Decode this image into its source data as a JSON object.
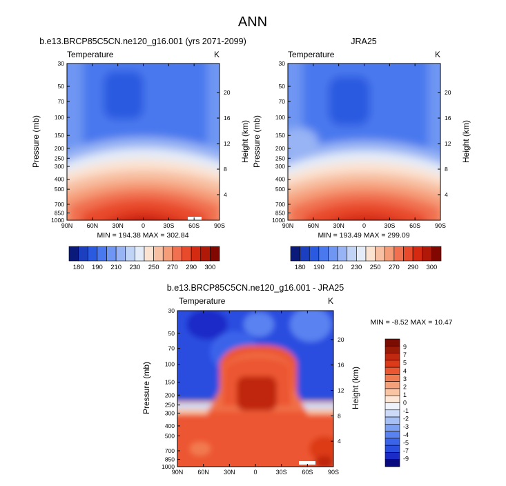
{
  "figure": {
    "title": "ANN"
  },
  "colors": {
    "abs_palette": [
      "#0a1a7a",
      "#1c3fc0",
      "#2a5ae0",
      "#4a78ee",
      "#6e96f2",
      "#98b4f4",
      "#c2d4f6",
      "#e4ecf8",
      "#fbe3d2",
      "#f7c0a2",
      "#f59c78",
      "#f07050",
      "#e84a2c",
      "#d42a12",
      "#b01808",
      "#800800"
    ],
    "diff_palette": [
      "#0a0a80",
      "#1a2bc8",
      "#2a4ee0",
      "#3a64ea",
      "#5a82f0",
      "#7ea0f2",
      "#a6bff5",
      "#ccdaf8",
      "#eef3fb",
      "#fde6d6",
      "#f9c4a4",
      "#f6a07a",
      "#f27a50",
      "#ec5630",
      "#dc3a18",
      "#c02810",
      "#9a1a08",
      "#7a0c04"
    ]
  },
  "chart_data": [
    {
      "type": "heatmap",
      "title": "b.e13.BRCP85C5CN.ne120_g16.001 (yrs 2071-2099)",
      "variable_label": "Temperature",
      "units_label": "K",
      "xlabel": "",
      "ylabel": "Pressure (mb)",
      "ylabel_right": "Height (km)",
      "x_ticks": [
        "90N",
        "60N",
        "30N",
        "0",
        "30S",
        "60S",
        "90S"
      ],
      "y_ticks": [
        "30",
        "50",
        "70",
        "100",
        "150",
        "200",
        "250",
        "300",
        "400",
        "500",
        "700",
        "850",
        "1000"
      ],
      "y_right_ticks": [
        "20",
        "16",
        "12",
        "8",
        "4"
      ],
      "min": 194.38,
      "max": 302.84,
      "stats_text": "MIN = 194.38  MAX = 302.84",
      "colorbar_labels": [
        "180",
        "190",
        "210",
        "230",
        "250",
        "270",
        "290",
        "300"
      ]
    },
    {
      "type": "heatmap",
      "title": "JRA25",
      "variable_label": "Temperature",
      "units_label": "K",
      "xlabel": "",
      "ylabel": "Pressure (mb)",
      "ylabel_right": "Height (km)",
      "x_ticks": [
        "90N",
        "60N",
        "30N",
        "0",
        "30S",
        "60S",
        "90S"
      ],
      "y_ticks": [
        "30",
        "50",
        "70",
        "100",
        "150",
        "200",
        "250",
        "300",
        "400",
        "500",
        "700",
        "850",
        "1000"
      ],
      "y_right_ticks": [
        "20",
        "16",
        "12",
        "8",
        "4"
      ],
      "min": 193.49,
      "max": 299.09,
      "stats_text": "MIN = 193.49  MAX = 299.09",
      "colorbar_labels": [
        "180",
        "190",
        "210",
        "230",
        "250",
        "270",
        "290",
        "300"
      ]
    },
    {
      "type": "heatmap",
      "title": "b.e13.BRCP85C5CN.ne120_g16.001 - JRA25",
      "variable_label": "Temperature",
      "units_label": "K",
      "xlabel": "",
      "ylabel": "Pressure (mb)",
      "ylabel_right": "Height (km)",
      "x_ticks": [
        "90N",
        "60N",
        "30N",
        "0",
        "30S",
        "60S",
        "90S"
      ],
      "y_ticks": [
        "30",
        "50",
        "70",
        "100",
        "150",
        "200",
        "250",
        "300",
        "400",
        "500",
        "700",
        "850",
        "1000"
      ],
      "y_right_ticks": [
        "20",
        "16",
        "12",
        "8",
        "4"
      ],
      "min": -8.52,
      "max": 10.47,
      "stats_text": "MIN = -8.52  MAX = 10.47",
      "colorbar_labels": [
        "9",
        "7",
        "5",
        "4",
        "3",
        "2",
        "1",
        "0",
        "-1",
        "-2",
        "-3",
        "-4",
        "-5",
        "-7",
        "-9"
      ]
    }
  ]
}
